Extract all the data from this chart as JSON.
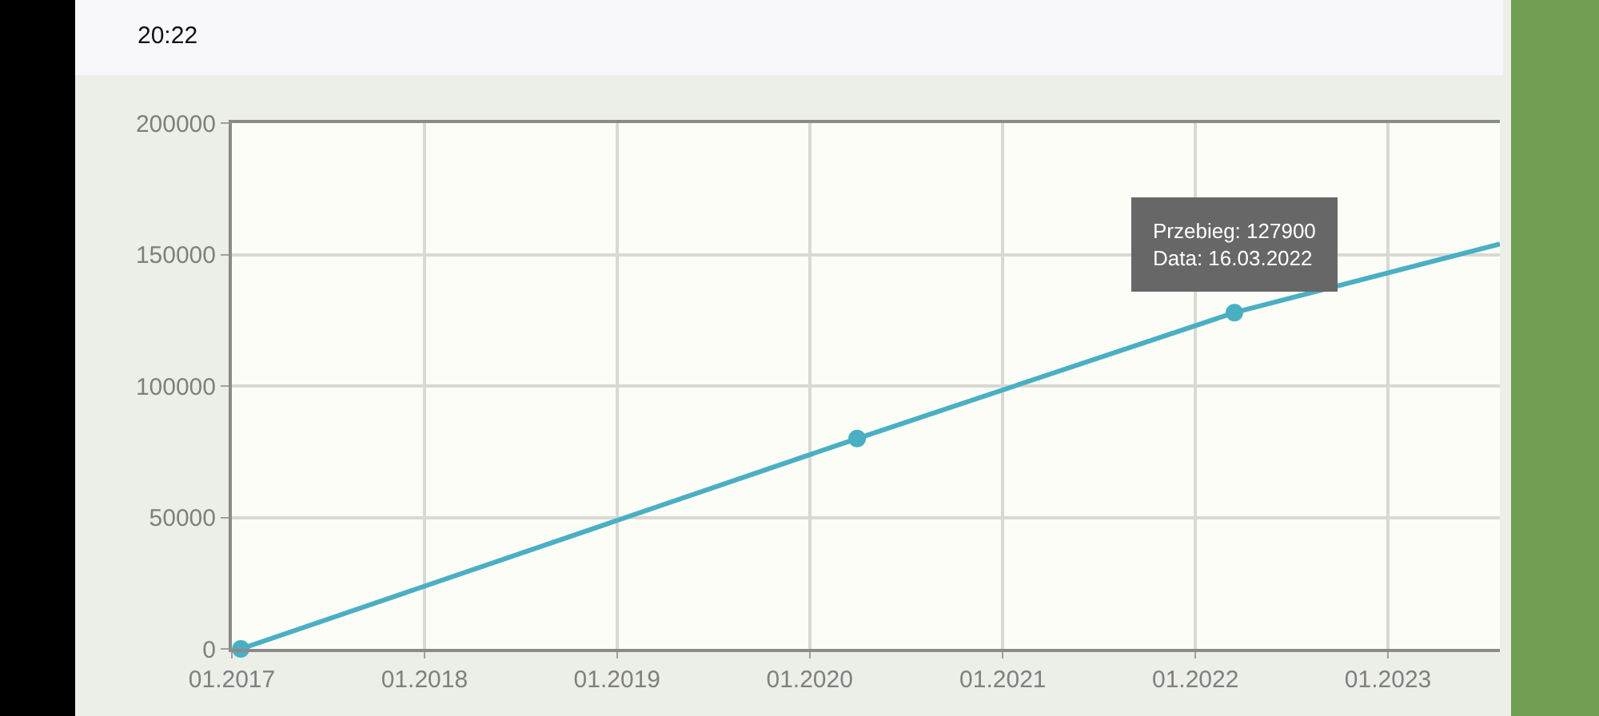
{
  "chart_data": {
    "type": "line",
    "xlim": [
      "2017-01-01",
      "2023-08-01"
    ],
    "xticks": [
      {
        "value": "2017-01-01",
        "label": "01.2017"
      },
      {
        "value": "2018-01-01",
        "label": "01.2018"
      },
      {
        "value": "2019-01-01",
        "label": "01.2019"
      },
      {
        "value": "2020-01-01",
        "label": "01.2020"
      },
      {
        "value": "2021-01-01",
        "label": "01.2021"
      },
      {
        "value": "2022-01-01",
        "label": "01.2022"
      },
      {
        "value": "2023-01-01",
        "label": "01.2023"
      }
    ],
    "ylim": [
      0,
      200000
    ],
    "yticks": [
      0,
      50000,
      100000,
      150000,
      200000
    ],
    "grid": true,
    "series": [
      {
        "color": "#4aafc3",
        "marker": "none",
        "x": [
          "2017-01-18",
          "2020-03-31",
          "2022-03-16",
          "2023-08-01"
        ],
        "values": [
          0,
          80000,
          127900,
          154000
        ]
      },
      {
        "type": "scatter",
        "color": "#4aafc3",
        "marker": "circle",
        "x": [
          "2017-01-18",
          "2020-03-31",
          "2022-03-16"
        ],
        "values": [
          0,
          80000,
          127900
        ]
      }
    ],
    "annotations": [
      "20:22",
      {
        "text": "Przebieg: 127900\nData: 16.03.2022",
        "x": "2022-03-16",
        "y": 127900
      }
    ]
  }
}
